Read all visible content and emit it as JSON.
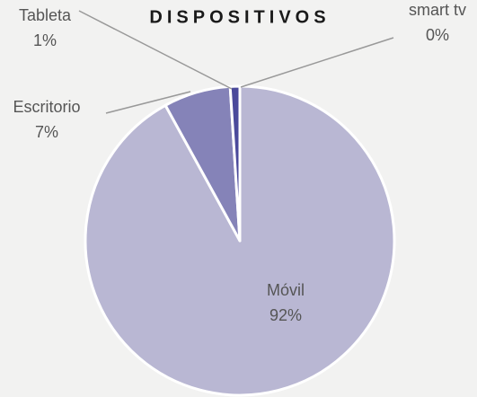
{
  "chart_data": {
    "type": "pie",
    "title": "DISPOSITIVOS",
    "categories": [
      "Móvil",
      "Escritorio",
      "Tableta",
      "smart tv"
    ],
    "values": [
      92,
      7,
      1,
      0
    ],
    "value_labels": [
      "92%",
      "7%",
      "1%",
      "0%"
    ],
    "colors": [
      "#b9b7d3",
      "#8583b8",
      "#4b4a9b",
      "#2e2d7a"
    ]
  }
}
